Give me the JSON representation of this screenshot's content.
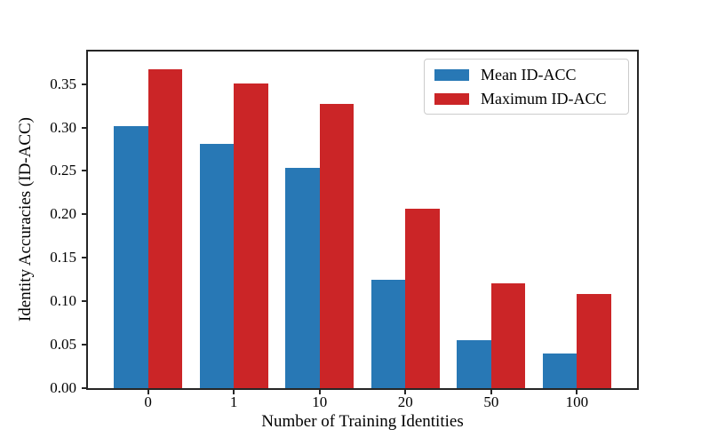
{
  "chart_data": {
    "type": "bar",
    "title": "",
    "xlabel": "Number of Training Identities",
    "ylabel": "Identity Accuracies (ID-ACC)",
    "categories": [
      "0",
      "1",
      "10",
      "20",
      "50",
      "100"
    ],
    "series": [
      {
        "name": "Mean ID-ACC",
        "color": "#2878b5",
        "values": [
          0.302,
          0.281,
          0.254,
          0.125,
          0.055,
          0.04
        ]
      },
      {
        "name": "Maximum ID-ACC",
        "color": "#cb2527",
        "values": [
          0.367,
          0.351,
          0.327,
          0.207,
          0.121,
          0.108
        ]
      }
    ],
    "yticks": [
      0.0,
      0.05,
      0.1,
      0.15,
      0.2,
      0.25,
      0.3,
      0.35
    ],
    "ylim": [
      0,
      0.3875
    ],
    "xlim": [
      -0.7,
      5.7
    ],
    "bar_width": 0.4,
    "grid": false,
    "legend_position": "upper right",
    "axis_color": "#262626",
    "background_color": "#ffffff"
  }
}
